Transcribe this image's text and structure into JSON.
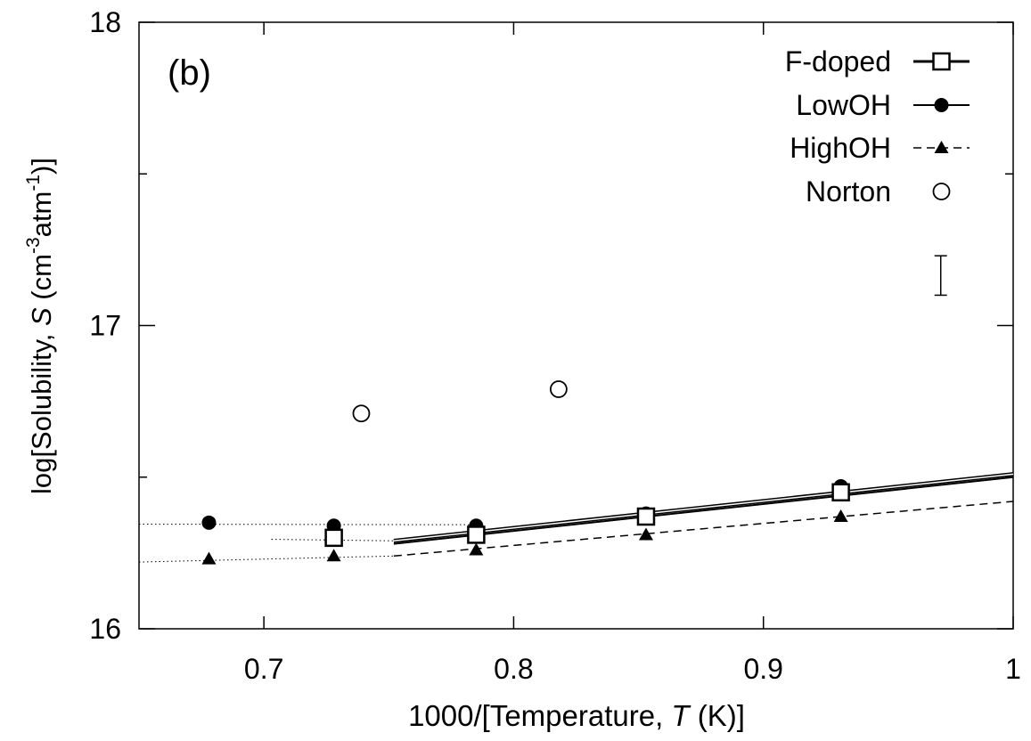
{
  "chart_data": {
    "type": "scatter",
    "panel_label": "(b)",
    "xlabel_prefix": "1000/[Temperature, ",
    "xlabel_var": "T",
    "xlabel_suffix": " (K)]",
    "ylabel_prefix": "log[Solubility, ",
    "ylabel_var": "S",
    "ylabel_unit_a": " (cm",
    "ylabel_exp_a": "-3",
    "ylabel_unit_b": "atm",
    "ylabel_exp_b": "-1",
    "ylabel_suffix": ")]",
    "xlim": [
      0.65,
      1.0
    ],
    "ylim": [
      16,
      18
    ],
    "x_ticks": [
      0.7,
      0.8,
      0.9,
      1.0
    ],
    "x_tick_labels": [
      "0.7",
      "0.8",
      "0.9",
      "1"
    ],
    "y_ticks": [
      16,
      17,
      18
    ],
    "y_tick_labels": [
      "16",
      "17",
      "18"
    ],
    "y_minor_ticks": [
      16.5,
      17.5
    ],
    "legend_position": "top-right",
    "series": [
      {
        "name": "F-doped",
        "marker": "open-square",
        "points": [
          [
            0.728,
            16.3
          ],
          [
            0.785,
            16.31
          ],
          [
            0.853,
            16.37
          ],
          [
            0.931,
            16.45
          ]
        ],
        "fit": {
          "line": "solid-double",
          "x": [
            0.752,
            1.0
          ],
          "y": [
            16.29,
            16.51
          ]
        },
        "extrapolation": {
          "x": [
            0.703,
            0.752
          ],
          "y": [
            16.295,
            16.29
          ]
        }
      },
      {
        "name": "LowOH",
        "marker": "filled-circle",
        "points": [
          [
            0.678,
            16.35
          ],
          [
            0.728,
            16.34
          ],
          [
            0.785,
            16.34
          ],
          [
            0.853,
            16.38
          ],
          [
            0.931,
            16.47
          ]
        ],
        "fit": {
          "line": "solid",
          "x": [
            0.752,
            1.0
          ],
          "y": [
            16.28,
            16.5
          ]
        },
        "extrapolation": {
          "x": [
            0.65,
            0.785
          ],
          "y": [
            16.345,
            16.343
          ]
        }
      },
      {
        "name": "HighOH",
        "marker": "filled-triangle",
        "points": [
          [
            0.678,
            16.23
          ],
          [
            0.728,
            16.24
          ],
          [
            0.785,
            16.26
          ],
          [
            0.853,
            16.31
          ],
          [
            0.931,
            16.37
          ]
        ],
        "fit": {
          "line": "dashed",
          "x": [
            0.752,
            1.0
          ],
          "y": [
            16.24,
            16.42
          ]
        },
        "extrapolation": {
          "x": [
            0.65,
            0.752
          ],
          "y": [
            16.22,
            16.24
          ]
        }
      },
      {
        "name": "Norton",
        "marker": "open-circle",
        "points": [
          [
            0.739,
            16.71
          ],
          [
            0.818,
            16.79
          ]
        ]
      }
    ],
    "error_bar": {
      "x": 0.971,
      "y_low": 17.1,
      "y_high": 17.23
    }
  }
}
